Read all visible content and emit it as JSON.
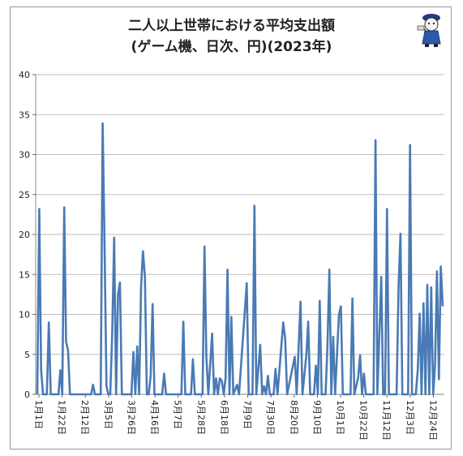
{
  "chart_data": {
    "type": "line",
    "title_line1": "二人以上世帯における平均支出額",
    "title_line2": "(ゲーム機、日次、円)(2023年)",
    "xlabel": "",
    "ylabel": "",
    "ylim": [
      0,
      40
    ],
    "yticks": [
      "0",
      "5",
      "10",
      "15",
      "20",
      "25",
      "30",
      "35",
      "40"
    ],
    "xticks": [
      "1月1日",
      "1月22日",
      "2月12日",
      "3月5日",
      "3月26日",
      "4月16日",
      "5月7日",
      "5月28日",
      "6月18日",
      "7月9日",
      "7月30日",
      "8月20日",
      "9月10日",
      "10月1日",
      "10月22日",
      "11月12日",
      "12月3日",
      "12月24日"
    ],
    "xtick_days": [
      0,
      21,
      42,
      63,
      84,
      105,
      126,
      147,
      168,
      189,
      210,
      231,
      252,
      273,
      294,
      315,
      336,
      357
    ],
    "grid": true,
    "series_color": "#4a7ab5",
    "series": [
      {
        "points": [
          [
            0,
            0
          ],
          [
            1,
            23.2
          ],
          [
            2,
            3
          ],
          [
            3,
            0
          ],
          [
            5,
            0
          ],
          [
            6,
            9
          ],
          [
            7,
            0
          ],
          [
            11,
            0
          ],
          [
            12,
            3
          ],
          [
            13,
            0
          ],
          [
            14,
            23.4
          ],
          [
            15,
            6.6
          ],
          [
            16,
            5.5
          ],
          [
            17,
            0
          ],
          [
            20,
            0
          ],
          [
            21,
            0
          ],
          [
            28,
            0
          ],
          [
            29,
            1.2
          ],
          [
            30,
            0
          ],
          [
            33,
            0
          ],
          [
            34,
            33.9
          ],
          [
            35,
            19
          ],
          [
            36,
            1
          ],
          [
            37,
            0
          ],
          [
            38,
            0
          ],
          [
            39,
            7.7
          ],
          [
            40,
            19.6
          ],
          [
            41,
            0
          ],
          [
            42,
            12.5
          ],
          [
            43,
            14
          ],
          [
            44,
            0
          ],
          [
            49,
            0
          ],
          [
            50,
            5.3
          ],
          [
            51,
            0
          ],
          [
            52,
            6
          ],
          [
            53,
            0
          ],
          [
            54,
            13.5
          ],
          [
            55,
            17.9
          ],
          [
            56,
            14.8
          ],
          [
            57,
            0
          ],
          [
            58,
            0
          ],
          [
            59,
            2.3
          ],
          [
            60,
            11.3
          ],
          [
            61,
            0
          ],
          [
            65,
            0
          ],
          [
            66,
            2.6
          ],
          [
            67,
            0
          ],
          [
            75,
            0
          ],
          [
            76,
            9.1
          ],
          [
            77,
            0
          ],
          [
            80,
            0
          ],
          [
            81,
            4.4
          ],
          [
            82,
            0
          ],
          [
            86,
            0
          ],
          [
            87,
            18.5
          ],
          [
            88,
            4.7
          ],
          [
            89,
            0
          ],
          [
            91,
            7.6
          ],
          [
            92,
            0
          ],
          [
            93,
            2
          ],
          [
            94,
            0
          ],
          [
            95,
            2
          ],
          [
            96,
            1.7
          ],
          [
            97,
            0
          ],
          [
            98,
            2
          ],
          [
            99,
            15.6
          ],
          [
            100,
            0
          ],
          [
            101,
            9.7
          ],
          [
            102,
            0
          ],
          [
            104,
            1.2
          ],
          [
            105,
            0
          ],
          [
            109,
            13.9
          ],
          [
            110,
            0
          ],
          [
            112,
            0
          ],
          [
            113,
            23.6
          ],
          [
            114,
            0
          ],
          [
            116,
            6.2
          ],
          [
            117,
            0
          ],
          [
            118,
            1
          ],
          [
            119,
            0
          ],
          [
            120,
            2.3
          ],
          [
            121,
            0
          ],
          [
            123,
            0
          ],
          [
            124,
            3.2
          ],
          [
            125,
            0
          ],
          [
            128,
            9
          ],
          [
            129,
            7
          ],
          [
            130,
            0
          ],
          [
            134,
            4.7
          ],
          [
            135,
            0
          ],
          [
            137,
            11.6
          ],
          [
            138,
            0
          ],
          [
            140,
            4.9
          ],
          [
            141,
            9.1
          ],
          [
            142,
            0
          ],
          [
            144,
            0
          ],
          [
            145,
            3.6
          ],
          [
            146,
            0
          ],
          [
            147,
            11.7
          ],
          [
            148,
            0
          ],
          [
            150,
            0
          ],
          [
            151,
            6
          ],
          [
            152,
            15.6
          ],
          [
            153,
            0
          ],
          [
            154,
            7.2
          ],
          [
            155,
            0
          ],
          [
            157,
            10
          ],
          [
            158,
            11
          ],
          [
            159,
            0
          ],
          [
            163,
            0
          ],
          [
            164,
            12
          ],
          [
            165,
            0
          ],
          [
            167,
            2.1
          ],
          [
            168,
            4.9
          ],
          [
            169,
            0
          ],
          [
            170,
            2.6
          ],
          [
            171,
            0
          ],
          [
            175,
            0
          ],
          [
            176,
            31.8
          ],
          [
            177,
            0
          ],
          [
            179,
            14.7
          ],
          [
            180,
            0
          ],
          [
            181,
            0
          ],
          [
            182,
            23.2
          ],
          [
            183,
            0
          ],
          [
            187,
            0
          ],
          [
            188,
            13.4
          ],
          [
            189,
            20.1
          ],
          [
            190,
            0
          ],
          [
            193,
            0
          ],
          [
            194,
            31.2
          ],
          [
            195,
            0
          ],
          [
            197,
            0
          ],
          [
            198,
            3
          ],
          [
            199,
            10.1
          ],
          [
            200,
            0
          ],
          [
            201,
            11.4
          ],
          [
            202,
            0
          ],
          [
            203,
            13.7
          ],
          [
            204,
            0
          ],
          [
            205,
            13.4
          ],
          [
            206,
            0
          ],
          [
            207,
            3.6
          ],
          [
            208,
            15.4
          ],
          [
            209,
            1.9
          ],
          [
            210,
            16
          ],
          [
            211,
            11
          ]
        ]
      }
    ],
    "x_range": [
      0,
      211
    ]
  }
}
